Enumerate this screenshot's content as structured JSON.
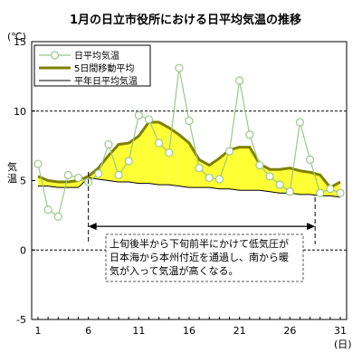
{
  "chart_data": {
    "type": "line",
    "title": "1月の日立市役所における日平均気温の推移",
    "unit_label": "(℃)",
    "ylabel": "気温",
    "xunit": "(日)",
    "ylim": [
      -5,
      15
    ],
    "xlim": [
      1,
      31
    ],
    "yticks": [
      -5,
      0,
      5,
      10,
      15
    ],
    "xticks": [
      1,
      6,
      11,
      16,
      21,
      26,
      31
    ],
    "grid_lines": [
      0,
      10
    ],
    "x": [
      1,
      2,
      3,
      4,
      5,
      6,
      7,
      8,
      9,
      10,
      11,
      12,
      13,
      14,
      15,
      16,
      17,
      18,
      19,
      20,
      21,
      22,
      23,
      24,
      25,
      26,
      27,
      28,
      29,
      30,
      31
    ],
    "series": [
      {
        "name": "日平均気温",
        "values": [
          6.2,
          2.9,
          2.4,
          5.4,
          5.2,
          4.9,
          5.5,
          7.6,
          5.4,
          6.4,
          9.7,
          9.4,
          7.7,
          7.0,
          13.1,
          9.3,
          5.9,
          5.2,
          5.1,
          7.1,
          12.2,
          8.3,
          6.1,
          5.3,
          4.7,
          4.2,
          9.2,
          6.5,
          4.1,
          4.4,
          4.1
        ],
        "color": "#9ac88a",
        "marker_fill": "#ffffff"
      },
      {
        "name": "5日間移動平均",
        "values": [
          5.3,
          5.0,
          4.9,
          4.9,
          5.0,
          5.3,
          5.9,
          6.8,
          7.6,
          7.7,
          8.2,
          9.2,
          9.2,
          8.8,
          8.3,
          7.7,
          6.5,
          6.1,
          6.6,
          7.2,
          7.4,
          7.4,
          6.2,
          5.8,
          5.8,
          5.9,
          5.7,
          5.6,
          5.4,
          4.5,
          4.9
        ],
        "color": "#808000"
      },
      {
        "name": "平年日平均気温",
        "values": [
          4.6,
          4.6,
          4.5,
          4.5,
          4.5,
          5.2,
          5.1,
          5.0,
          4.9,
          4.9,
          4.8,
          4.8,
          4.7,
          4.7,
          4.6,
          4.5,
          4.5,
          4.5,
          4.4,
          4.4,
          4.3,
          4.3,
          4.3,
          4.2,
          4.1,
          4.1,
          4.0,
          4.0,
          3.9,
          3.9,
          3.8
        ],
        "color": "#000000"
      }
    ],
    "fills": {
      "above_normal": "#ffff33",
      "below_normal": "#33ccff"
    },
    "legend": {
      "position": "top-left"
    },
    "annotation": {
      "lines": [
        "上旬後半から下旬前半にかけて低気圧が",
        "日本海から本州付近を通過し、南から暖",
        "気が入って気温が高くなる。"
      ],
      "arrow_start_day": 6,
      "arrow_end_day": 28.5,
      "arrow_level": 1.7
    }
  }
}
